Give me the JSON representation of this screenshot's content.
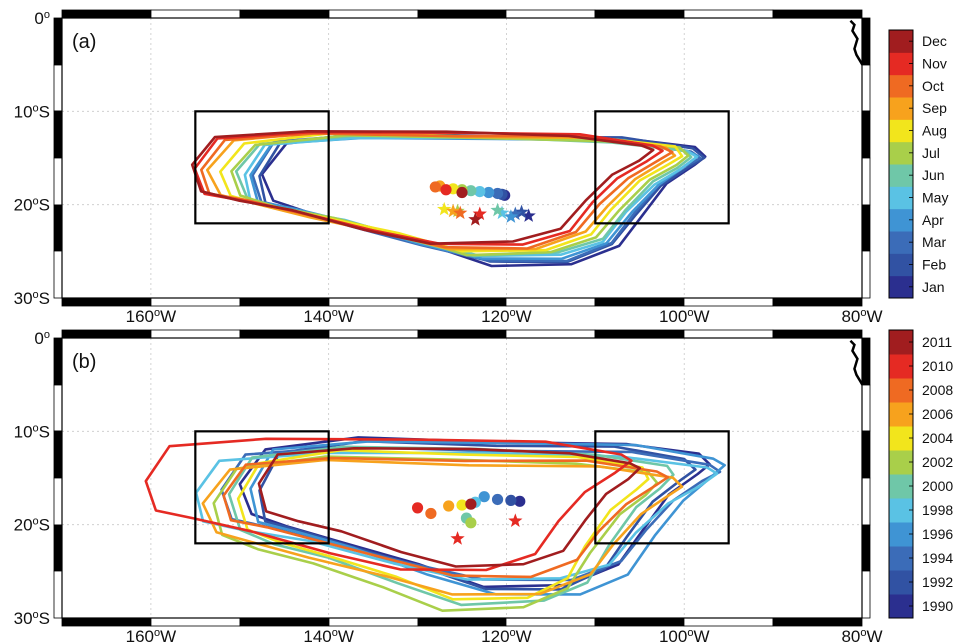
{
  "chart_data": [
    {
      "panel_label": "(a)",
      "type": "line",
      "xlim": [
        -170,
        -80
      ],
      "ylim": [
        -30,
        0
      ],
      "x_ticks": [
        {
          "value": -160,
          "label": "160",
          "unit": "W"
        },
        {
          "value": -140,
          "label": "140",
          "unit": "W"
        },
        {
          "value": -120,
          "label": "120",
          "unit": "W"
        },
        {
          "value": -100,
          "label": "100",
          "unit": "W"
        },
        {
          "value": -80,
          "label": "80",
          "unit": "W"
        }
      ],
      "y_ticks": [
        {
          "value": 0,
          "label": "0",
          "unit": ""
        },
        {
          "value": -10,
          "label": "10",
          "unit": "S"
        },
        {
          "value": -20,
          "label": "20",
          "unit": "S"
        },
        {
          "value": -30,
          "label": "30",
          "unit": "S"
        }
      ],
      "grid": true,
      "legend": "colorbar-right",
      "boxes": [
        {
          "lon": [
            -155,
            -140
          ],
          "lat": [
            -22,
            -10
          ]
        },
        {
          "lon": [
            -110,
            -95
          ],
          "lat": [
            -22,
            -10
          ]
        }
      ],
      "colorbar": [
        "Jan",
        "Feb",
        "Mar",
        "Apr",
        "May",
        "Jun",
        "Jul",
        "Aug",
        "Sep",
        "Oct",
        "Nov",
        "Dec"
      ],
      "colors": [
        "#2b2f8f",
        "#3152a3",
        "#3b6cb8",
        "#3f94d4",
        "#5ac2e4",
        "#6fc7a8",
        "#a9cf4a",
        "#f2e51c",
        "#f7a21d",
        "#ef6a22",
        "#e52a23",
        "#a11d1f"
      ],
      "contours": [
        {
          "color_index": 0,
          "w_lon": -147.5,
          "e_lon": -97.5,
          "n_lat": -12.6,
          "s_lat": -26.4
        },
        {
          "color_index": 1,
          "w_lon": -148.0,
          "e_lon": -98.0,
          "n_lat": -12.7,
          "s_lat": -26.2
        },
        {
          "color_index": 2,
          "w_lon": -148.5,
          "e_lon": -98.2,
          "n_lat": -12.8,
          "s_lat": -26.1
        },
        {
          "color_index": 3,
          "w_lon": -149.0,
          "e_lon": -98.5,
          "n_lat": -12.9,
          "s_lat": -25.8
        },
        {
          "color_index": 4,
          "w_lon": -149.5,
          "e_lon": -98.8,
          "n_lat": -13.0,
          "s_lat": -25.6
        },
        {
          "color_index": 5,
          "w_lon": -150.2,
          "e_lon": -99.0,
          "n_lat": -12.9,
          "s_lat": -25.4
        },
        {
          "color_index": 6,
          "w_lon": -151.0,
          "e_lon": -99.5,
          "n_lat": -12.8,
          "s_lat": -25.2
        },
        {
          "color_index": 7,
          "w_lon": -152.0,
          "e_lon": -100.2,
          "n_lat": -12.7,
          "s_lat": -25.0
        },
        {
          "color_index": 8,
          "w_lon": -153.5,
          "e_lon": -100.8,
          "n_lat": -12.6,
          "s_lat": -24.8
        },
        {
          "color_index": 9,
          "w_lon": -154.5,
          "e_lon": -101.5,
          "n_lat": -12.5,
          "s_lat": -24.6
        },
        {
          "color_index": 10,
          "w_lon": -155.0,
          "e_lon": -102.5,
          "n_lat": -12.4,
          "s_lat": -24.4
        },
        {
          "color_index": 11,
          "w_lon": -155.5,
          "e_lon": -103.5,
          "n_lat": -12.3,
          "s_lat": -24.2
        }
      ],
      "dots": [
        {
          "lon": -120.2,
          "lat": -19.0,
          "color_index": 0
        },
        {
          "lon": -120.5,
          "lat": -18.9,
          "color_index": 1
        },
        {
          "lon": -121.0,
          "lat": -18.8,
          "color_index": 2
        },
        {
          "lon": -122.0,
          "lat": -18.7,
          "color_index": 3
        },
        {
          "lon": -123.0,
          "lat": -18.6,
          "color_index": 4
        },
        {
          "lon": -124.0,
          "lat": -18.5,
          "color_index": 5
        },
        {
          "lon": -125.0,
          "lat": -18.4,
          "color_index": 6
        },
        {
          "lon": -126.0,
          "lat": -18.3,
          "color_index": 7
        },
        {
          "lon": -127.5,
          "lat": -18.0,
          "color_index": 8
        },
        {
          "lon": -128.0,
          "lat": -18.1,
          "color_index": 9
        },
        {
          "lon": -126.8,
          "lat": -18.4,
          "color_index": 10
        },
        {
          "lon": -125.0,
          "lat": -18.7,
          "color_index": 11
        }
      ],
      "stars": [
        {
          "lon": -117.5,
          "lat": -21.2,
          "color_index": 0
        },
        {
          "lon": -118.3,
          "lat": -20.8,
          "color_index": 1
        },
        {
          "lon": -119.0,
          "lat": -21.0,
          "color_index": 2
        },
        {
          "lon": -119.5,
          "lat": -21.3,
          "color_index": 3
        },
        {
          "lon": -120.5,
          "lat": -20.9,
          "color_index": 4
        },
        {
          "lon": -121.0,
          "lat": -20.6,
          "color_index": 5
        },
        {
          "lon": -125.5,
          "lat": -20.7,
          "color_index": 6
        },
        {
          "lon": -127.0,
          "lat": -20.5,
          "color_index": 7
        },
        {
          "lon": -126.0,
          "lat": -20.7,
          "color_index": 8
        },
        {
          "lon": -125.2,
          "lat": -20.9,
          "color_index": 9
        },
        {
          "lon": -123.0,
          "lat": -21.0,
          "color_index": 10
        },
        {
          "lon": -123.5,
          "lat": -21.6,
          "color_index": 11
        }
      ]
    },
    {
      "panel_label": "(b)",
      "type": "line",
      "xlim": [
        -170,
        -80
      ],
      "ylim": [
        -30,
        0
      ],
      "x_ticks": [
        {
          "value": -160,
          "label": "160",
          "unit": "W"
        },
        {
          "value": -140,
          "label": "140",
          "unit": "W"
        },
        {
          "value": -120,
          "label": "120",
          "unit": "W"
        },
        {
          "value": -100,
          "label": "100",
          "unit": "W"
        },
        {
          "value": -80,
          "label": "80",
          "unit": "W"
        }
      ],
      "y_ticks": [
        {
          "value": 0,
          "label": "0",
          "unit": ""
        },
        {
          "value": -10,
          "label": "10",
          "unit": "S"
        },
        {
          "value": -20,
          "label": "20",
          "unit": "S"
        },
        {
          "value": -30,
          "label": "30",
          "unit": "S"
        }
      ],
      "grid": true,
      "legend": "colorbar-right",
      "boxes": [
        {
          "lon": [
            -155,
            -140
          ],
          "lat": [
            -22,
            -10
          ]
        },
        {
          "lon": [
            -110,
            -95
          ],
          "lat": [
            -22,
            -10
          ]
        }
      ],
      "colorbar": [
        "1990",
        "1992",
        "1994",
        "1996",
        "1998",
        "2000",
        "2002",
        "2004",
        "2006",
        "2008",
        "2010",
        "2011"
      ],
      "colors": [
        "#2b2f8f",
        "#3152a3",
        "#3b6cb8",
        "#3f94d4",
        "#5ac2e4",
        "#6fc7a8",
        "#a9cf4a",
        "#f2e51c",
        "#f7a21d",
        "#ef6a22",
        "#e52a23",
        "#a11d1f"
      ],
      "contours": [
        {
          "color_index": 0,
          "w_lon": -150.0,
          "e_lon": -97.0,
          "n_lat": -11.0,
          "s_lat": -26.5
        },
        {
          "color_index": 1,
          "w_lon": -148.0,
          "e_lon": -99.0,
          "n_lat": -11.5,
          "s_lat": -27.0
        },
        {
          "color_index": 2,
          "w_lon": -152.0,
          "e_lon": -96.0,
          "n_lat": -12.0,
          "s_lat": -26.0
        },
        {
          "color_index": 3,
          "w_lon": -149.0,
          "e_lon": -95.5,
          "n_lat": -11.2,
          "s_lat": -27.5
        },
        {
          "color_index": 4,
          "w_lon": -155.0,
          "e_lon": -96.5,
          "n_lat": -12.5,
          "s_lat": -26.0
        },
        {
          "color_index": 5,
          "w_lon": -151.0,
          "e_lon": -101.0,
          "n_lat": -12.0,
          "s_lat": -28.5
        },
        {
          "color_index": 6,
          "w_lon": -153.0,
          "e_lon": -103.0,
          "n_lat": -13.0,
          "s_lat": -29.0
        },
        {
          "color_index": 7,
          "w_lon": -150.0,
          "e_lon": -104.0,
          "n_lat": -12.5,
          "s_lat": -28.0
        },
        {
          "color_index": 8,
          "w_lon": -154.0,
          "e_lon": -100.0,
          "n_lat": -13.5,
          "s_lat": -27.5
        },
        {
          "color_index": 9,
          "w_lon": -152.0,
          "e_lon": -102.0,
          "n_lat": -13.0,
          "s_lat": -25.5
        },
        {
          "color_index": 10,
          "w_lon": -160.5,
          "e_lon": -106.0,
          "n_lat": -11.0,
          "s_lat": -25.0
        },
        {
          "color_index": 11,
          "w_lon": -148.0,
          "e_lon": -105.0,
          "n_lat": -12.0,
          "s_lat": -24.5
        }
      ],
      "dots": [
        {
          "lon": -118.5,
          "lat": -17.5,
          "color_index": 0
        },
        {
          "lon": -119.5,
          "lat": -17.4,
          "color_index": 1
        },
        {
          "lon": -121.0,
          "lat": -17.3,
          "color_index": 2
        },
        {
          "lon": -122.5,
          "lat": -17.0,
          "color_index": 3
        },
        {
          "lon": -123.5,
          "lat": -17.6,
          "color_index": 4
        },
        {
          "lon": -124.5,
          "lat": -19.3,
          "color_index": 5
        },
        {
          "lon": -124.0,
          "lat": -19.8,
          "color_index": 6
        },
        {
          "lon": -125.0,
          "lat": -17.9,
          "color_index": 7
        },
        {
          "lon": -126.5,
          "lat": -18.0,
          "color_index": 8
        },
        {
          "lon": -128.5,
          "lat": -18.8,
          "color_index": 9
        },
        {
          "lon": -130.0,
          "lat": -18.2,
          "color_index": 10
        },
        {
          "lon": -124.0,
          "lat": -17.8,
          "color_index": 11
        }
      ],
      "stars": [
        {
          "lon": -119.0,
          "lat": -19.6,
          "color_index": 10
        },
        {
          "lon": -125.5,
          "lat": -21.5,
          "color_index": 10
        }
      ]
    }
  ]
}
